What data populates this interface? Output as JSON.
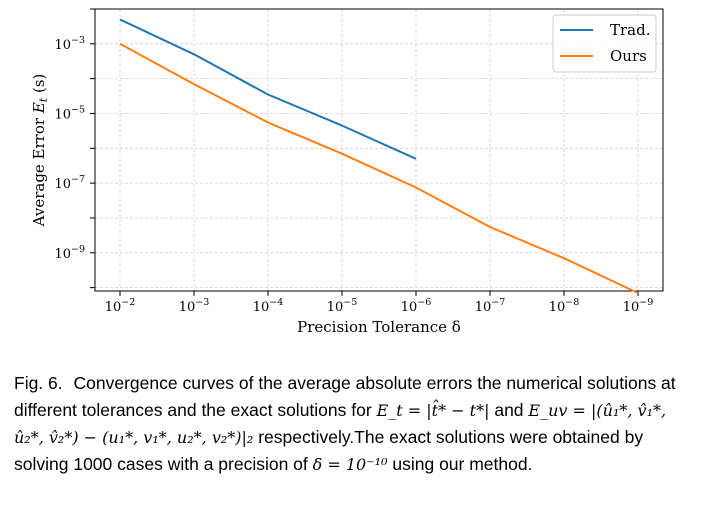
{
  "chart_data": {
    "type": "line",
    "xscale": "log",
    "yscale": "log",
    "xaxis_inverted": true,
    "x": [
      0.01,
      0.001,
      0.0001,
      1e-05,
      1e-06,
      1e-07,
      1e-08,
      1e-09
    ],
    "x_tick_labels": [
      "10^{-2}",
      "10^{-3}",
      "10^{-4}",
      "10^{-5}",
      "10^{-6}",
      "10^{-7}",
      "10^{-8}",
      "10^{-9}"
    ],
    "y_tick_values": [
      0.001,
      1e-05,
      1e-07,
      1e-09
    ],
    "y_tick_labels": [
      "10^{-3}",
      "10^{-5}",
      "10^{-7}",
      "10^{-9}"
    ],
    "ylim": [
      8e-11,
      0.01
    ],
    "xlabel": "Precision Tolerance δ",
    "ylabel": "Average Error E_t (s)",
    "grid": true,
    "legend_position": "top-right",
    "series": [
      {
        "name": "Trad.",
        "color": "#1f77b4",
        "x": [
          0.01,
          0.001,
          0.0001,
          1e-05,
          1e-06
        ],
        "values": [
          0.005,
          0.0005,
          3.5e-05,
          4.5e-06,
          5e-07
        ]
      },
      {
        "name": "Ours",
        "color": "#ff7f0e",
        "x": [
          0.01,
          0.001,
          0.0001,
          1e-05,
          1e-06,
          1e-07,
          1e-08,
          1e-09
        ],
        "values": [
          0.001,
          7e-05,
          5.5e-06,
          7e-07,
          7.5e-08,
          5.5e-09,
          7e-10,
          7e-11
        ]
      }
    ]
  },
  "caption": {
    "label": "Fig. 6.",
    "text_1": "Convergence curves of the average absolute errors the numerical solutions at different tolerances and the exact solutions for",
    "et_formula": "E_t = |t̂* − t*|",
    "text_2": "and",
    "euv_formula": "E_uv = |(û₁*, v̂₁*, û₂*, v̂₂*) − (u₁*, v₁*, u₂*, v₂*)|₂",
    "text_3": "respectively.The exact solutions were obtained by solving 1000 cases with a precision of",
    "delta_formula": "δ = 10⁻¹⁰",
    "text_4": "using our method."
  }
}
